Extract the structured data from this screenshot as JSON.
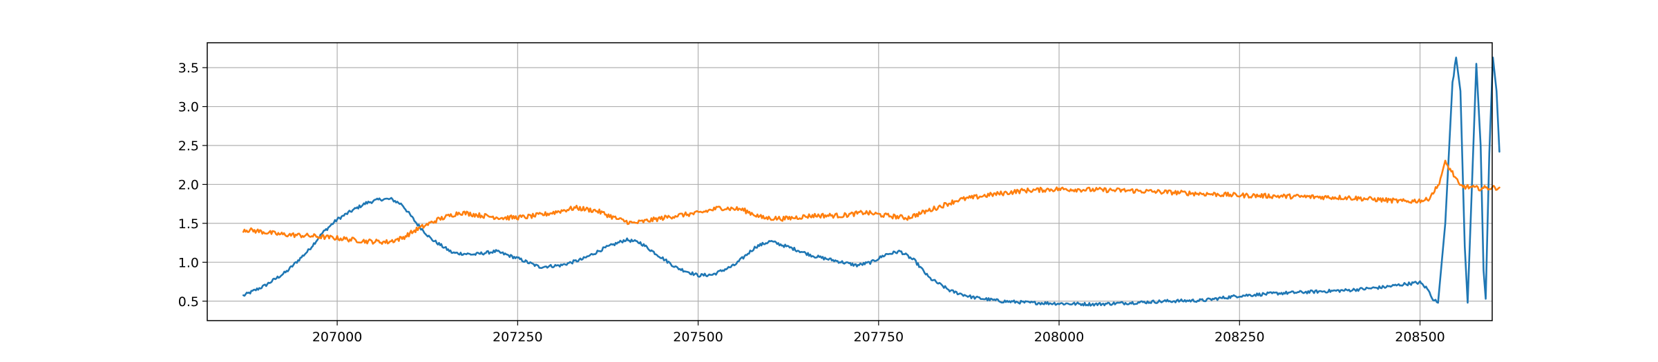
{
  "chart_data": {
    "type": "line",
    "title": "",
    "xlabel": "",
    "ylabel": "",
    "xlim": [
      206820,
      208600
    ],
    "ylim": [
      0.25,
      3.82
    ],
    "grid": true,
    "legend": "none",
    "x_ticks": [
      {
        "value": 207000,
        "label": "207000"
      },
      {
        "value": 207250,
        "label": "207250"
      },
      {
        "value": 207500,
        "label": "207500"
      },
      {
        "value": 207750,
        "label": "207750"
      },
      {
        "value": 208000,
        "label": "208000"
      },
      {
        "value": 208250,
        "label": "208250"
      },
      {
        "value": 208500,
        "label": "208500"
      }
    ],
    "y_ticks": [
      {
        "value": 0.5,
        "label": "0.5"
      },
      {
        "value": 1.0,
        "label": "1.0"
      },
      {
        "value": 1.5,
        "label": "1.5"
      },
      {
        "value": 2.0,
        "label": "2.0"
      },
      {
        "value": 2.5,
        "label": "2.5"
      },
      {
        "value": 3.0,
        "label": "3.0"
      },
      {
        "value": 3.5,
        "label": "3.5"
      }
    ],
    "series": [
      {
        "color": "#1f77b4",
        "noise": 0.02,
        "points": [
          [
            206870,
            0.57
          ],
          [
            206900,
            0.7
          ],
          [
            206930,
            0.88
          ],
          [
            206960,
            1.15
          ],
          [
            206980,
            1.38
          ],
          [
            207000,
            1.55
          ],
          [
            207020,
            1.66
          ],
          [
            207040,
            1.76
          ],
          [
            207060,
            1.81
          ],
          [
            207075,
            1.81
          ],
          [
            207090,
            1.74
          ],
          [
            207110,
            1.5
          ],
          [
            207130,
            1.3
          ],
          [
            207160,
            1.12
          ],
          [
            207190,
            1.1
          ],
          [
            207220,
            1.14
          ],
          [
            207250,
            1.05
          ],
          [
            207280,
            0.94
          ],
          [
            207310,
            0.96
          ],
          [
            207340,
            1.04
          ],
          [
            207370,
            1.18
          ],
          [
            207400,
            1.29
          ],
          [
            207420,
            1.25
          ],
          [
            207440,
            1.12
          ],
          [
            207470,
            0.93
          ],
          [
            207500,
            0.83
          ],
          [
            207520,
            0.84
          ],
          [
            207550,
            0.96
          ],
          [
            207580,
            1.2
          ],
          [
            207600,
            1.27
          ],
          [
            207630,
            1.18
          ],
          [
            207660,
            1.08
          ],
          [
            207690,
            1.02
          ],
          [
            207720,
            0.96
          ],
          [
            207740,
            1.0
          ],
          [
            207760,
            1.1
          ],
          [
            207780,
            1.14
          ],
          [
            207800,
            1.02
          ],
          [
            207820,
            0.8
          ],
          [
            207850,
            0.63
          ],
          [
            207880,
            0.55
          ],
          [
            207920,
            0.5
          ],
          [
            207960,
            0.48
          ],
          [
            208000,
            0.47
          ],
          [
            208050,
            0.46
          ],
          [
            208100,
            0.48
          ],
          [
            208150,
            0.5
          ],
          [
            208200,
            0.51
          ],
          [
            208250,
            0.57
          ],
          [
            208300,
            0.6
          ],
          [
            208350,
            0.62
          ],
          [
            208400,
            0.64
          ],
          [
            208450,
            0.68
          ],
          [
            208480,
            0.72
          ],
          [
            208500,
            0.74
          ],
          [
            208510,
            0.66
          ],
          [
            208518,
            0.53
          ],
          [
            208525,
            0.48
          ],
          [
            208535,
            1.5
          ],
          [
            208545,
            3.3
          ],
          [
            208550,
            3.63
          ],
          [
            208556,
            3.2
          ],
          [
            208562,
            1.2
          ],
          [
            208566,
            0.48
          ],
          [
            208572,
            2.0
          ],
          [
            208578,
            3.55
          ],
          [
            208584,
            2.5
          ],
          [
            208588,
            0.9
          ],
          [
            208591,
            0.53
          ],
          [
            208596,
            2.4
          ],
          [
            208601,
            3.63
          ],
          [
            208606,
            3.2
          ],
          [
            208610,
            2.42
          ]
        ]
      },
      {
        "color": "#ff7f0e",
        "noise": 0.03,
        "points": [
          [
            206870,
            1.42
          ],
          [
            206890,
            1.4
          ],
          [
            206920,
            1.36
          ],
          [
            206960,
            1.34
          ],
          [
            207000,
            1.31
          ],
          [
            207040,
            1.27
          ],
          [
            207070,
            1.26
          ],
          [
            207090,
            1.31
          ],
          [
            207110,
            1.42
          ],
          [
            207140,
            1.55
          ],
          [
            207170,
            1.64
          ],
          [
            207200,
            1.6
          ],
          [
            207230,
            1.57
          ],
          [
            207260,
            1.58
          ],
          [
            207290,
            1.62
          ],
          [
            207330,
            1.7
          ],
          [
            207360,
            1.66
          ],
          [
            207390,
            1.55
          ],
          [
            207410,
            1.5
          ],
          [
            207440,
            1.55
          ],
          [
            207470,
            1.6
          ],
          [
            207500,
            1.63
          ],
          [
            207530,
            1.7
          ],
          [
            207560,
            1.68
          ],
          [
            207590,
            1.57
          ],
          [
            207620,
            1.56
          ],
          [
            207660,
            1.6
          ],
          [
            207700,
            1.6
          ],
          [
            207730,
            1.64
          ],
          [
            207760,
            1.6
          ],
          [
            207790,
            1.57
          ],
          [
            207830,
            1.7
          ],
          [
            207860,
            1.8
          ],
          [
            207900,
            1.86
          ],
          [
            207950,
            1.92
          ],
          [
            208000,
            1.94
          ],
          [
            208050,
            1.93
          ],
          [
            208100,
            1.92
          ],
          [
            208150,
            1.9
          ],
          [
            208200,
            1.88
          ],
          [
            208250,
            1.86
          ],
          [
            208300,
            1.85
          ],
          [
            208350,
            1.84
          ],
          [
            208400,
            1.83
          ],
          [
            208450,
            1.8
          ],
          [
            208480,
            1.78
          ],
          [
            208510,
            1.8
          ],
          [
            208525,
            1.98
          ],
          [
            208535,
            2.28
          ],
          [
            208545,
            2.15
          ],
          [
            208555,
            1.98
          ],
          [
            208580,
            1.95
          ],
          [
            208610,
            1.96
          ]
        ]
      }
    ]
  }
}
